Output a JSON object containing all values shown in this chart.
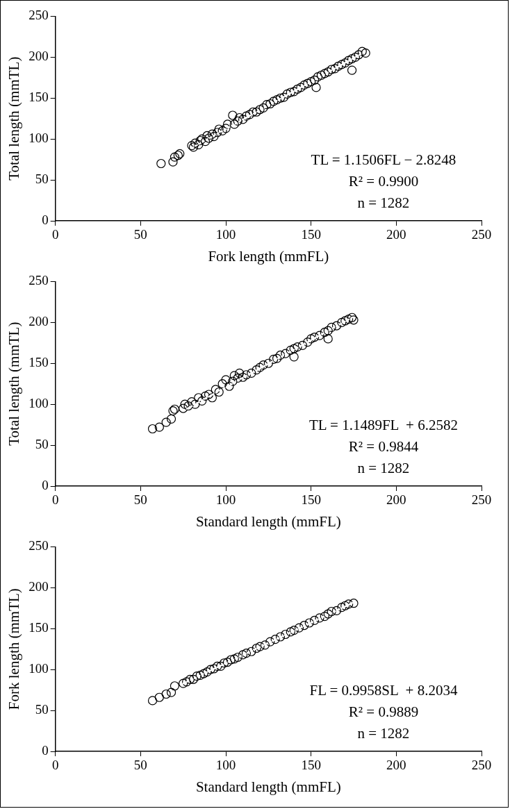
{
  "chart_data": [
    {
      "type": "scatter",
      "xlabel": "Fork length (mmFL)",
      "ylabel": "Total length (mmTL)",
      "xlim": [
        0,
        250
      ],
      "ylim": [
        0,
        250
      ],
      "xticks": [
        0,
        50,
        100,
        150,
        200,
        250
      ],
      "yticks": [
        0,
        50,
        100,
        150,
        200,
        250
      ],
      "grid": false,
      "legend": false,
      "marker": "circle",
      "annotations": [
        "TL = 1.1506FL − 2.8248",
        "R² = 0.9900",
        "n = 1282"
      ],
      "series": [
        {
          "type": "scatter",
          "color": "#000000",
          "x": [
            62,
            69,
            70,
            72,
            73,
            80,
            81,
            82,
            84,
            85,
            86,
            88,
            89,
            90,
            92,
            93,
            95,
            96,
            98,
            100,
            101,
            104,
            105,
            107,
            108,
            110,
            112,
            114,
            116,
            118,
            120,
            122,
            124,
            126,
            128,
            130,
            132,
            134,
            136,
            138,
            140,
            142,
            144,
            146,
            148,
            150,
            152,
            153,
            154,
            156,
            158,
            160,
            162,
            164,
            166,
            168,
            170,
            172,
            174,
            174,
            176,
            178,
            180,
            182
          ],
          "values": [
            70,
            72,
            78,
            80,
            82,
            92,
            90,
            95,
            93,
            98,
            100,
            97,
            104,
            101,
            106,
            103,
            108,
            112,
            110,
            113,
            118,
            129,
            118,
            122,
            126,
            124,
            128,
            130,
            133,
            133,
            136,
            138,
            142,
            143,
            146,
            148,
            150,
            151,
            155,
            157,
            158,
            161,
            163,
            166,
            168,
            170,
            172,
            163,
            176,
            178,
            180,
            182,
            185,
            186,
            189,
            191,
            193,
            196,
            198,
            184,
            200,
            203,
            207,
            205
          ]
        },
        {
          "type": "line",
          "color": "#ffffff",
          "line_style": "dotted",
          "marker": "none",
          "x": [
            80,
            182
          ],
          "values": [
            89,
            207
          ]
        }
      ]
    },
    {
      "type": "scatter",
      "xlabel": "Standard length (mmFL)",
      "ylabel": "Total length (mmTL)",
      "xlim": [
        0,
        250
      ],
      "ylim": [
        0,
        250
      ],
      "xticks": [
        0,
        50,
        100,
        150,
        200,
        250
      ],
      "yticks": [
        0,
        50,
        100,
        150,
        200,
        250
      ],
      "grid": false,
      "legend": false,
      "marker": "circle",
      "annotations": [
        "TL = 1.1489FL  + 6.2582",
        "R² = 0.9844",
        "n = 1282"
      ],
      "series": [
        {
          "type": "scatter",
          "color": "#000000",
          "x": [
            57,
            61,
            65,
            68,
            69,
            70,
            75,
            76,
            78,
            80,
            82,
            84,
            86,
            88,
            90,
            92,
            94,
            96,
            98,
            100,
            102,
            104,
            105,
            107,
            108,
            110,
            112,
            115,
            118,
            120,
            122,
            125,
            128,
            130,
            132,
            135,
            138,
            140,
            140,
            142,
            145,
            148,
            150,
            152,
            155,
            158,
            160,
            160,
            162,
            165,
            168,
            170,
            172,
            174,
            175
          ],
          "values": [
            70,
            72,
            78,
            82,
            92,
            94,
            95,
            100,
            98,
            103,
            100,
            108,
            104,
            110,
            112,
            108,
            118,
            115,
            125,
            130,
            122,
            128,
            135,
            132,
            138,
            133,
            136,
            138,
            142,
            145,
            148,
            150,
            155,
            156,
            160,
            162,
            166,
            168,
            158,
            170,
            172,
            176,
            180,
            182,
            184,
            188,
            190,
            180,
            194,
            196,
            200,
            202,
            204,
            206,
            203
          ]
        },
        {
          "type": "line",
          "color": "#ffffff",
          "line_style": "dotted",
          "marker": "none",
          "x": [
            75,
            175
          ],
          "values": [
            92,
            207
          ]
        }
      ]
    },
    {
      "type": "scatter",
      "xlabel": "Standard length (mmFL)",
      "ylabel": "Fork length (mmTL)",
      "xlim": [
        0,
        250
      ],
      "ylim": [
        0,
        250
      ],
      "xticks": [
        0,
        50,
        100,
        150,
        200,
        250
      ],
      "yticks": [
        0,
        50,
        100,
        150,
        200,
        250
      ],
      "grid": false,
      "legend": false,
      "marker": "circle",
      "annotations": [
        "FL = 0.9958SL  + 8.2034",
        "R² = 0.9889",
        "n = 1282"
      ],
      "series": [
        {
          "type": "scatter",
          "color": "#000000",
          "x": [
            57,
            61,
            65,
            68,
            70,
            75,
            77,
            79,
            81,
            83,
            85,
            87,
            89,
            91,
            93,
            95,
            97,
            99,
            101,
            103,
            105,
            107,
            110,
            112,
            115,
            118,
            120,
            123,
            126,
            129,
            132,
            135,
            138,
            140,
            143,
            146,
            149,
            152,
            155,
            158,
            160,
            162,
            165,
            168,
            170,
            172,
            175
          ],
          "values": [
            62,
            66,
            70,
            72,
            80,
            83,
            85,
            88,
            88,
            92,
            93,
            95,
            97,
            100,
            101,
            104,
            104,
            108,
            109,
            112,
            113,
            115,
            118,
            120,
            122,
            126,
            128,
            130,
            134,
            137,
            140,
            143,
            146,
            148,
            151,
            154,
            157,
            160,
            163,
            165,
            168,
            171,
            172,
            176,
            178,
            180,
            181
          ]
        },
        {
          "type": "line",
          "color": "#ffffff",
          "line_style": "dotted",
          "marker": "none",
          "x": [
            75,
            175
          ],
          "values": [
            83,
            182
          ]
        }
      ]
    }
  ]
}
